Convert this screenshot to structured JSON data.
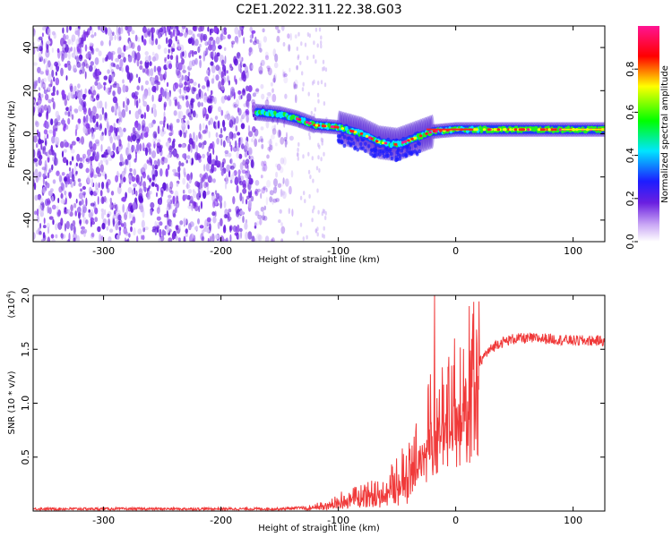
{
  "title": "C2E1.2022.311.22.38.G03",
  "chart_data": [
    {
      "type": "heatmap",
      "xlabel": "Height of straight line (km)",
      "ylabel": "Frequency (Hz)",
      "xlim": [
        -360,
        127
      ],
      "ylim": [
        -50,
        50
      ],
      "xticks": [
        "-300",
        "-200",
        "-100",
        "0",
        "100"
      ],
      "yticks": [
        "40",
        "20",
        "0",
        "-20",
        "-40"
      ],
      "colorbar": {
        "label": "Normalized spectral amplitude",
        "ticks": [
          "0.0",
          "0.2",
          "0.4",
          "0.6",
          "0.8"
        ],
        "range": [
          0,
          1
        ],
        "colormap": [
          "#ffffff",
          "#8a2be2",
          "#1d1dff",
          "#00e5ff",
          "#00ff00",
          "#ffff00",
          "#ff0000",
          "#ff1493"
        ]
      },
      "features": {
        "noise_region_x": [
          -360,
          -135
        ],
        "noise_color": "#7b2fe0",
        "signal_start_x": -170,
        "signal_track": [
          [
            -170,
            10
          ],
          [
            -150,
            9
          ],
          [
            -135,
            7
          ],
          [
            -120,
            4
          ],
          [
            -100,
            3
          ],
          [
            -80,
            0
          ],
          [
            -65,
            -4
          ],
          [
            -50,
            -5
          ],
          [
            -35,
            -2
          ],
          [
            -20,
            1
          ],
          [
            0,
            2
          ],
          [
            20,
            2
          ],
          [
            60,
            2
          ],
          [
            127,
            2
          ]
        ]
      },
      "grid": false
    },
    {
      "type": "line",
      "xlabel": "Height of straight line (km)",
      "ylabel": "SNR (10 * v/v)",
      "yscale_note": "(x10",
      "yscale_exp": "4",
      "yscale_close": ")",
      "xlim": [
        -360,
        127
      ],
      "ylim": [
        0,
        2.0
      ],
      "xticks": [
        "-300",
        "-200",
        "-100",
        "0",
        "100"
      ],
      "yticks": [
        "2.0",
        "1.5",
        "1.0",
        "0.5"
      ],
      "color": "#f03a3a",
      "envelope": [
        [
          -360,
          0.02
        ],
        [
          -150,
          0.02
        ],
        [
          -130,
          0.03
        ],
        [
          -115,
          0.05
        ],
        [
          -100,
          0.1
        ],
        [
          -80,
          0.15
        ],
        [
          -60,
          0.2
        ],
        [
          -45,
          0.35
        ],
        [
          -35,
          0.5
        ],
        [
          -28,
          0.7
        ],
        [
          -20,
          0.85
        ],
        [
          -12,
          0.9
        ],
        [
          -5,
          1.0
        ],
        [
          5,
          1.15
        ],
        [
          15,
          1.3
        ],
        [
          25,
          1.45
        ],
        [
          35,
          1.55
        ],
        [
          50,
          1.6
        ],
        [
          75,
          1.6
        ],
        [
          100,
          1.58
        ],
        [
          127,
          1.58
        ]
      ],
      "spike": {
        "x": -18,
        "y": 2.0
      },
      "grid": false
    }
  ]
}
